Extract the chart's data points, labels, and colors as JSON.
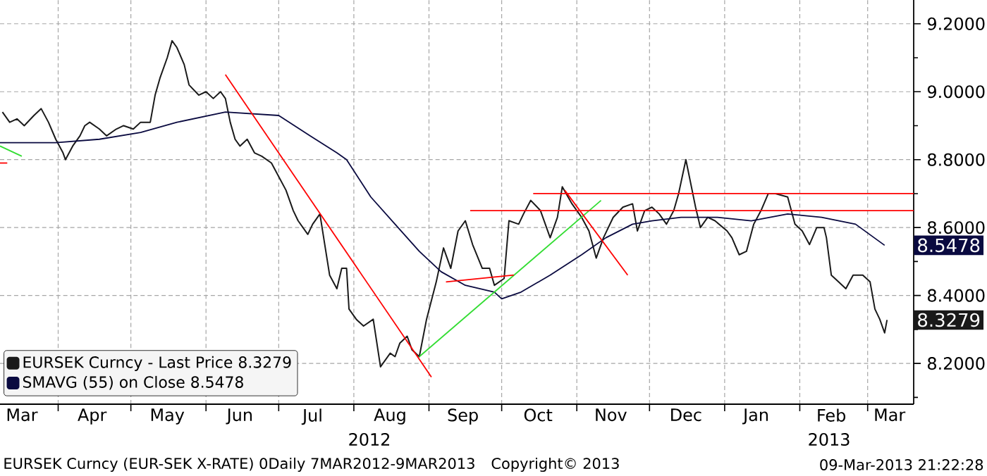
{
  "chart_data": {
    "type": "line",
    "xlim": [
      "2012-03-08",
      "2013-03-20"
    ],
    "xticks": [
      {
        "value": "2012-04-01",
        "label": null
      },
      {
        "value": "2012-05-01",
        "label": null
      },
      {
        "value": "2012-06-01",
        "label": null
      },
      {
        "value": "2012-07-01",
        "label": null
      },
      {
        "value": "2012-08-01",
        "label": null
      },
      {
        "value": "2012-09-01",
        "label": null
      },
      {
        "value": "2012-10-01",
        "label": null
      },
      {
        "value": "2012-11-01",
        "label": null
      },
      {
        "value": "2012-12-01",
        "label": null
      },
      {
        "value": "2013-01-01",
        "label": null
      },
      {
        "value": "2013-02-01",
        "label": null
      },
      {
        "value": "2013-03-01",
        "label": null
      },
      {
        "value": "2012-03-17",
        "label": "Mar"
      },
      {
        "value": "2012-04-15",
        "label": "Apr"
      },
      {
        "value": "2012-05-16",
        "label": "May"
      },
      {
        "value": "2012-06-15",
        "label": "Jun"
      },
      {
        "value": "2012-07-15",
        "label": "Jul"
      },
      {
        "value": "2012-08-16",
        "label": "Aug"
      },
      {
        "value": "2012-09-15",
        "label": "Sep"
      },
      {
        "value": "2012-10-16",
        "label": "Oct"
      },
      {
        "value": "2012-11-15",
        "label": "Nov"
      },
      {
        "value": "2012-12-16",
        "label": "Dec"
      },
      {
        "value": "2013-01-14",
        "label": "Jan"
      },
      {
        "value": "2013-02-14",
        "label": "Feb"
      },
      {
        "value": "2013-03-10",
        "label": "Mar"
      }
    ],
    "ylim": [
      8.08,
      9.27
    ],
    "yticks": [
      {
        "value": 8.2,
        "label": "8.2000"
      },
      {
        "value": 8.4,
        "label": "8.4000"
      },
      {
        "value": 8.6,
        "label": "8.6000"
      },
      {
        "value": 8.8,
        "label": "8.8000"
      },
      {
        "value": 9.0,
        "label": "9.0000"
      },
      {
        "value": 9.2,
        "label": "9.2000"
      },
      {
        "value": 8.1,
        "label": null
      },
      {
        "value": 8.3,
        "label": null
      },
      {
        "value": 8.5,
        "label": null
      },
      {
        "value": 8.7,
        "label": null
      },
      {
        "value": 8.9,
        "label": null
      },
      {
        "value": 9.1,
        "label": null
      }
    ],
    "grid": true,
    "legend": "bottom left",
    "marker": "none",
    "line_style": "solid",
    "series": [
      {
        "name": "EURSEK Curncy - Last Price 8.3279",
        "color": "#1a1a1a",
        "x": [
          "2012-03-09",
          "2012-03-12",
          "2012-03-15",
          "2012-03-18",
          "2012-03-22",
          "2012-03-25",
          "2012-03-28",
          "2012-03-31",
          "2012-04-03",
          "2012-04-04",
          "2012-04-07",
          "2012-04-10",
          "2012-04-12",
          "2012-04-14",
          "2012-04-18",
          "2012-04-21",
          "2012-04-25",
          "2012-04-28",
          "2012-05-02",
          "2012-05-05",
          "2012-05-09",
          "2012-05-11",
          "2012-05-13",
          "2012-05-16",
          "2012-05-18",
          "2012-05-20",
          "2012-05-23",
          "2012-05-25",
          "2012-05-29",
          "2012-06-01",
          "2012-06-04",
          "2012-06-07",
          "2012-06-09",
          "2012-06-11",
          "2012-06-13",
          "2012-06-15",
          "2012-06-18",
          "2012-06-21",
          "2012-06-24",
          "2012-06-28",
          "2012-07-01",
          "2012-07-04",
          "2012-07-07",
          "2012-07-09",
          "2012-07-13",
          "2012-07-15",
          "2012-07-18",
          "2012-07-20",
          "2012-07-22",
          "2012-07-25",
          "2012-07-27",
          "2012-07-29",
          "2012-07-30",
          "2012-08-02",
          "2012-08-05",
          "2012-08-09",
          "2012-08-12",
          "2012-08-16",
          "2012-08-18",
          "2012-08-20",
          "2012-08-23",
          "2012-08-25",
          "2012-08-28",
          "2012-08-31",
          "2012-09-04",
          "2012-09-07",
          "2012-09-10",
          "2012-09-13",
          "2012-09-16",
          "2012-09-19",
          "2012-09-23",
          "2012-09-26",
          "2012-09-28",
          "2012-10-02",
          "2012-10-04",
          "2012-10-08",
          "2012-10-10",
          "2012-10-13",
          "2012-10-17",
          "2012-10-21",
          "2012-10-24",
          "2012-10-26",
          "2012-10-30",
          "2012-11-03",
          "2012-11-06",
          "2012-11-09",
          "2012-11-12",
          "2012-11-16",
          "2012-11-20",
          "2012-11-24",
          "2012-11-26",
          "2012-11-29",
          "2012-12-02",
          "2012-12-05",
          "2012-12-08",
          "2012-12-11",
          "2012-12-13",
          "2012-12-16",
          "2012-12-18",
          "2012-12-20",
          "2012-12-22",
          "2012-12-25",
          "2012-12-28",
          "2013-01-02",
          "2013-01-04",
          "2013-01-07",
          "2013-01-10",
          "2013-01-13",
          "2013-01-16",
          "2013-01-19",
          "2013-01-22",
          "2013-01-27",
          "2013-01-30",
          "2013-02-02",
          "2013-02-05",
          "2013-02-08",
          "2013-02-11",
          "2013-02-12",
          "2013-02-14",
          "2013-02-17",
          "2013-02-20",
          "2013-02-23",
          "2013-02-27",
          "2013-03-02",
          "2013-03-04",
          "2013-03-06",
          "2013-03-08",
          "2013-03-09"
        ],
        "values": [
          8.94,
          8.91,
          8.92,
          8.9,
          8.93,
          8.95,
          8.91,
          8.86,
          8.82,
          8.8,
          8.84,
          8.87,
          8.9,
          8.91,
          8.89,
          8.87,
          8.89,
          8.9,
          8.89,
          8.91,
          8.91,
          8.99,
          9.04,
          9.1,
          9.15,
          9.13,
          9.08,
          9.02,
          8.99,
          9.0,
          8.98,
          9.0,
          8.98,
          8.91,
          8.86,
          8.84,
          8.86,
          8.82,
          8.81,
          8.79,
          8.75,
          8.71,
          8.65,
          8.62,
          8.58,
          8.61,
          8.64,
          8.55,
          8.46,
          8.42,
          8.48,
          8.48,
          8.36,
          8.33,
          8.31,
          8.33,
          8.19,
          8.23,
          8.22,
          8.26,
          8.28,
          8.24,
          8.22,
          8.33,
          8.44,
          8.54,
          8.48,
          8.59,
          8.62,
          8.55,
          8.48,
          8.48,
          8.43,
          8.45,
          8.62,
          8.61,
          8.64,
          8.68,
          8.65,
          8.57,
          8.63,
          8.72,
          8.67,
          8.63,
          8.59,
          8.51,
          8.57,
          8.63,
          8.66,
          8.67,
          8.59,
          8.65,
          8.66,
          8.64,
          8.61,
          8.65,
          8.7,
          8.8,
          8.73,
          8.66,
          8.6,
          8.63,
          8.62,
          8.59,
          8.57,
          8.52,
          8.53,
          8.61,
          8.65,
          8.7,
          8.7,
          8.69,
          8.61,
          8.59,
          8.55,
          8.6,
          8.6,
          8.57,
          8.46,
          8.44,
          8.42,
          8.46,
          8.46,
          8.44,
          8.36,
          8.33,
          8.29,
          8.3279
        ]
      },
      {
        "name": "SMAVG (55) on Close 8.5478",
        "color": "#0a0a40",
        "x": [
          "2012-03-08",
          "2012-03-31",
          "2012-04-18",
          "2012-05-05",
          "2012-05-20",
          "2012-06-09",
          "2012-07-01",
          "2012-07-14",
          "2012-07-25",
          "2012-07-29",
          "2012-08-08",
          "2012-08-18",
          "2012-08-28",
          "2012-09-06",
          "2012-09-16",
          "2012-09-28",
          "2012-10-01",
          "2012-10-09",
          "2012-10-21",
          "2012-11-03",
          "2012-11-13",
          "2012-11-24",
          "2012-12-02",
          "2012-12-14",
          "2012-12-29",
          "2013-01-12",
          "2013-01-27",
          "2013-02-10",
          "2013-02-24",
          "2013-03-08"
        ],
        "values": [
          8.85,
          8.85,
          8.86,
          8.88,
          8.91,
          8.94,
          8.93,
          8.87,
          8.82,
          8.8,
          8.69,
          8.61,
          8.53,
          8.47,
          8.43,
          8.41,
          8.39,
          8.41,
          8.46,
          8.52,
          8.57,
          8.61,
          8.62,
          8.63,
          8.63,
          8.62,
          8.64,
          8.63,
          8.61,
          8.5478
        ]
      },
      {
        "color": "#ff0000",
        "x": [
          "2012-06-09",
          "2012-09-02"
        ],
        "values": [
          9.05,
          8.16
        ]
      },
      {
        "color": "#33dd33",
        "x": [
          "2012-08-28",
          "2012-11-11"
        ],
        "values": [
          8.22,
          8.68
        ]
      },
      {
        "color": "#ff0000",
        "x": [
          "2012-09-08",
          "2012-10-06"
        ],
        "values": [
          8.44,
          8.46
        ]
      },
      {
        "color": "#ff0000",
        "x": [
          "2012-10-27",
          "2012-11-22"
        ],
        "values": [
          8.71,
          8.46
        ]
      },
      {
        "color": "#ff0000",
        "x": [
          "2012-09-18",
          "2013-03-20"
        ],
        "values": [
          8.65,
          8.65
        ]
      },
      {
        "color": "#ff0000",
        "x": [
          "2012-10-14",
          "2013-03-20"
        ],
        "values": [
          8.7,
          8.7
        ]
      },
      {
        "color": "#33dd33",
        "x": [
          "2012-03-08",
          "2012-03-17"
        ],
        "values": [
          8.84,
          8.81
        ]
      },
      {
        "color": "#ff0000",
        "x": [
          "2012-03-08",
          "2012-03-11"
        ],
        "values": [
          8.79,
          8.79
        ]
      }
    ],
    "annotations": [
      "2012",
      "2013",
      "EURSEK Curncy (EUR-SEK X-RATE) 0Daily 7MAR2012-9MAR2013",
      "Copyright© 2013",
      "09-Mar-2013 21:22:28",
      {
        "text": "8.5478",
        "x": "2013-03-08",
        "y": 8.5478
      },
      {
        "text": "8.3279",
        "x": "2013-03-09",
        "y": 8.3279
      }
    ]
  }
}
